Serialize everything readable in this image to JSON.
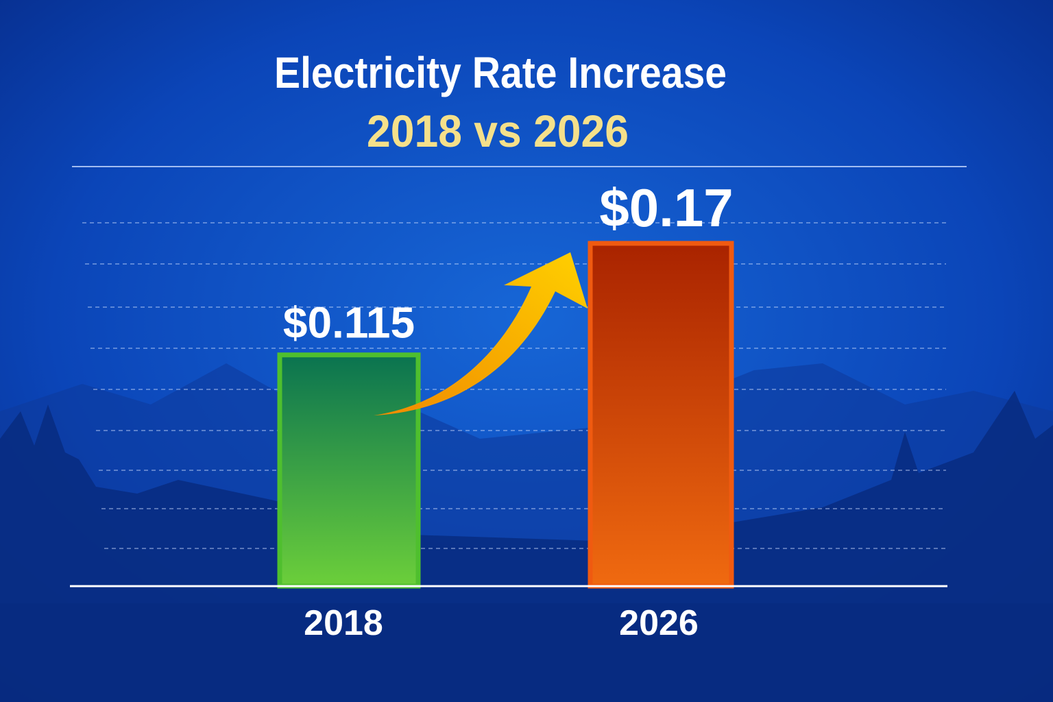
{
  "chart_data": {
    "type": "bar",
    "title": "Electricity Rate Increase",
    "subtitle": "2018 vs 2026",
    "categories": [
      "2018",
      "2026"
    ],
    "values": [
      0.115,
      0.17
    ],
    "data_labels": [
      "$0.115",
      "$0.17"
    ],
    "xlabel": "",
    "ylabel": "",
    "grid": true,
    "colors": {
      "bar_2018": "#4fbf2e",
      "bar_2026": "#f05a10",
      "arrow": "#f7b500",
      "title": "#ffffff",
      "subtitle": "#f5e08a",
      "background": "#0b3bb0"
    },
    "annotation_icon": "up-arrow-icon"
  }
}
